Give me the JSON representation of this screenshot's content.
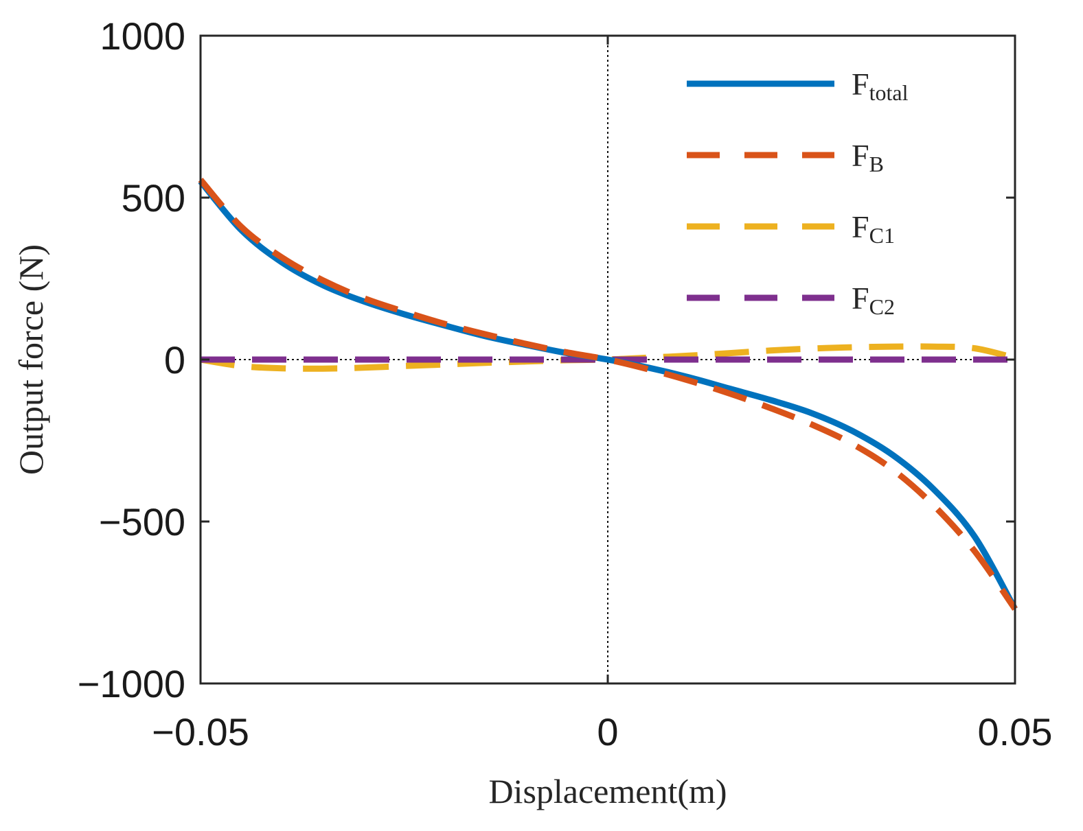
{
  "chart_data": {
    "type": "line",
    "title": "",
    "xlabel": "Displacement(m)",
    "ylabel": "Output force (N)",
    "xlim": [
      -0.05,
      0.05
    ],
    "ylim": [
      -1000,
      1000
    ],
    "x_ticks": [
      -0.05,
      0,
      0.05
    ],
    "y_ticks": [
      -1000,
      -500,
      0,
      500,
      1000
    ],
    "x_tick_labels": [
      "−0.05",
      "0",
      "0.05"
    ],
    "y_tick_labels": [
      "−1000",
      "−500",
      "0",
      "500",
      "1000"
    ],
    "grid": false,
    "reference_lines": [
      {
        "axis": "x",
        "value": 0,
        "style": "dotted"
      },
      {
        "axis": "y",
        "value": 0,
        "style": "dotted"
      }
    ],
    "legend_position": "top-right",
    "x": [
      -0.05,
      -0.045,
      -0.04,
      -0.035,
      -0.03,
      -0.025,
      -0.02,
      -0.015,
      -0.01,
      -0.005,
      0,
      0.005,
      0.01,
      0.015,
      0.02,
      0.025,
      0.03,
      0.035,
      0.04,
      0.045,
      0.05
    ],
    "series": [
      {
        "name": "Ftotal",
        "base": "F",
        "sub": "total",
        "color": "#0072BD",
        "style": "solid",
        "values": [
          550,
          400,
          300,
          230,
          180,
          140,
          105,
          72,
          45,
          20,
          0,
          -25,
          -55,
          -90,
          -125,
          -165,
          -220,
          -295,
          -400,
          -545,
          -770
        ]
      },
      {
        "name": "FB",
        "base": "F",
        "sub": "B",
        "color": "#D95319",
        "style": "dashed",
        "values": [
          555,
          410,
          315,
          245,
          190,
          148,
          110,
          78,
          48,
          22,
          0,
          -30,
          -65,
          -105,
          -150,
          -200,
          -260,
          -340,
          -450,
          -590,
          -770
        ]
      },
      {
        "name": "FC1",
        "base": "F",
        "sub": "C1",
        "color": "#EDB120",
        "style": "dashed",
        "values": [
          0,
          -20,
          -27,
          -28,
          -25,
          -20,
          -15,
          -10,
          -6,
          -2,
          0,
          6,
          12,
          20,
          28,
          34,
          38,
          40,
          40,
          35,
          5
        ]
      },
      {
        "name": "FC2",
        "base": "F",
        "sub": "C2",
        "color": "#7E2F8E",
        "style": "dashed",
        "values": [
          0,
          0,
          0,
          0,
          0,
          0,
          0,
          0,
          0,
          0,
          0,
          0,
          0,
          0,
          0,
          0,
          0,
          0,
          0,
          0,
          0
        ]
      }
    ]
  }
}
